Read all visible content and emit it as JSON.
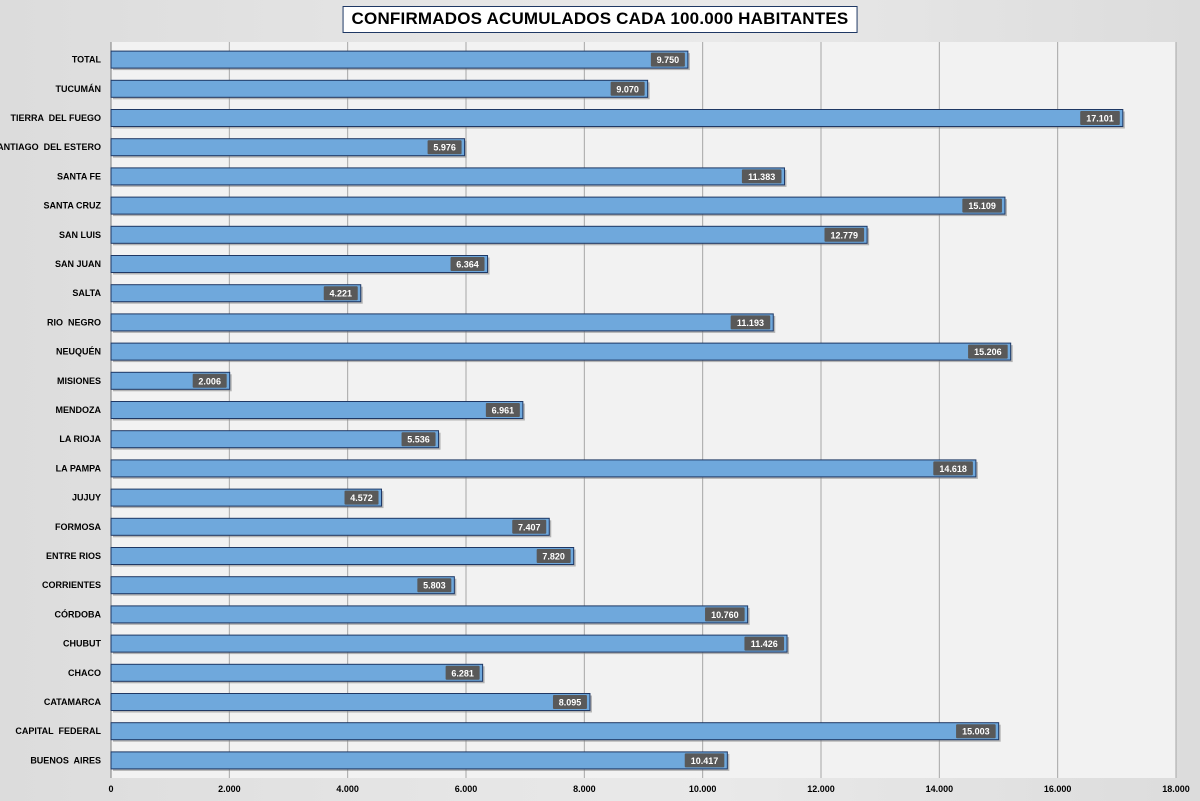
{
  "chart_data": {
    "type": "bar",
    "orientation": "horizontal",
    "title": "CONFIRMADOS ACUMULADOS CADA 100.000 HABITANTES",
    "xlim": [
      0,
      18000
    ],
    "x_tick_step": 2000,
    "x_tick_labels": [
      "0",
      "2.000",
      "4.000",
      "6.000",
      "8.000",
      "10.000",
      "12.000",
      "14.000",
      "16.000",
      "18.000"
    ],
    "grid": "vertical",
    "bar_color": "#6fa8dc",
    "bar_border_color": "#1f3864",
    "label_bg_color": "#595959",
    "categories": [
      "TOTAL",
      "TUCUMÁN",
      "TIERRA  DEL FUEGO",
      "SANTIAGO  DEL ESTERO",
      "SANTA FE",
      "SANTA CRUZ",
      "SAN LUIS",
      "SAN JUAN",
      "SALTA",
      "RIO  NEGRO",
      "NEUQUÉN",
      "MISIONES",
      "MENDOZA",
      "LA RIOJA",
      "LA PAMPA",
      "JUJUY",
      "FORMOSA",
      "ENTRE RIOS",
      "CORRIENTES",
      "CÓRDOBA",
      "CHUBUT",
      "CHACO",
      "CATAMARCA",
      "CAPITAL  FEDERAL",
      "BUENOS  AIRES"
    ],
    "values": [
      9750,
      9070,
      17101,
      5976,
      11383,
      15109,
      12779,
      6364,
      4221,
      11193,
      15206,
      2006,
      6961,
      5536,
      14618,
      4572,
      7407,
      7820,
      5803,
      10760,
      11426,
      6281,
      8095,
      15003,
      10417
    ],
    "value_labels": [
      "9.750",
      "9.070",
      "17.101",
      "5.976",
      "11.383",
      "15.109",
      "12.779",
      "6.364",
      "4.221",
      "11.193",
      "15.206",
      "2.006",
      "6.961",
      "5.536",
      "14.618",
      "4.572",
      "7.407",
      "7.820",
      "5.803",
      "10.760",
      "11.426",
      "6.281",
      "8.095",
      "15.003",
      "10.417"
    ]
  }
}
